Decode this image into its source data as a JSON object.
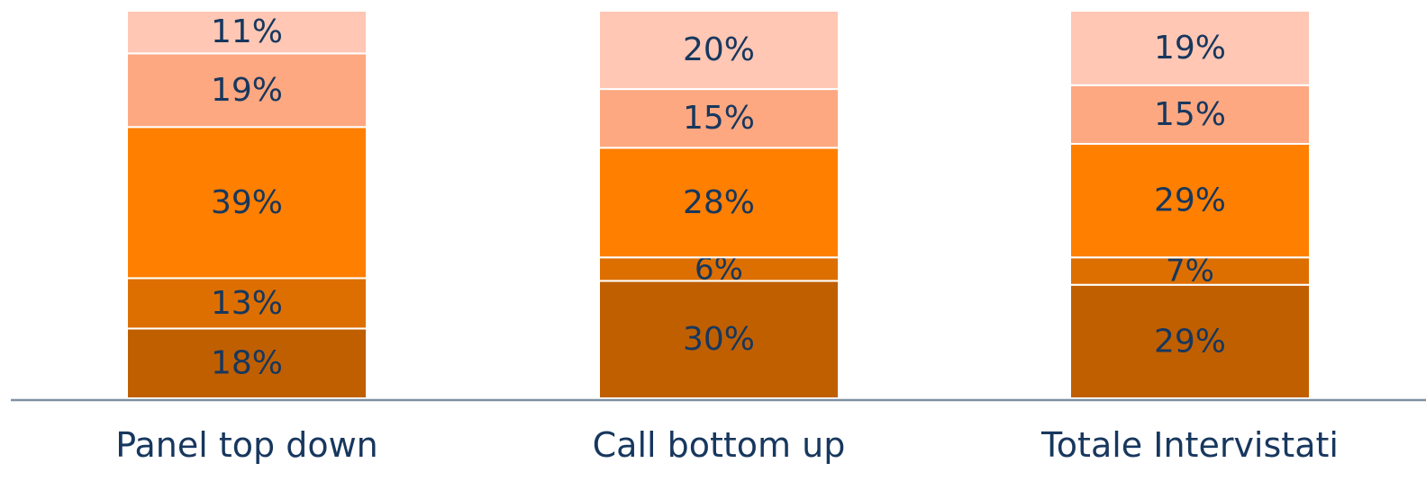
{
  "chart_data": {
    "type": "bar",
    "stacked": true,
    "normalized": true,
    "categories": [
      "Panel top down",
      "Call bottom up",
      "Totale Intervistati"
    ],
    "series": [
      {
        "values": [
          18,
          30,
          29
        ],
        "labels": [
          "18%",
          "30%",
          "29%"
        ],
        "color": "#C05F00"
      },
      {
        "values": [
          13,
          6,
          7
        ],
        "labels": [
          "13%",
          "6%",
          "7%"
        ],
        "color": "#DD6F00"
      },
      {
        "values": [
          39,
          28,
          29
        ],
        "labels": [
          "39%",
          "28%",
          "29%"
        ],
        "color": "#FF7F00"
      },
      {
        "values": [
          19,
          15,
          15
        ],
        "labels": [
          "19%",
          "15%",
          "15%"
        ],
        "color": "#FDA881"
      },
      {
        "values": [
          11,
          20,
          19
        ],
        "labels": [
          "11%",
          "20%",
          "19%"
        ],
        "color": "#FFC7B4"
      }
    ],
    "ylim": [
      0,
      100
    ],
    "grid": false,
    "legend": "none",
    "axis_color": "#8090A0",
    "label_color": "#17375E"
  }
}
